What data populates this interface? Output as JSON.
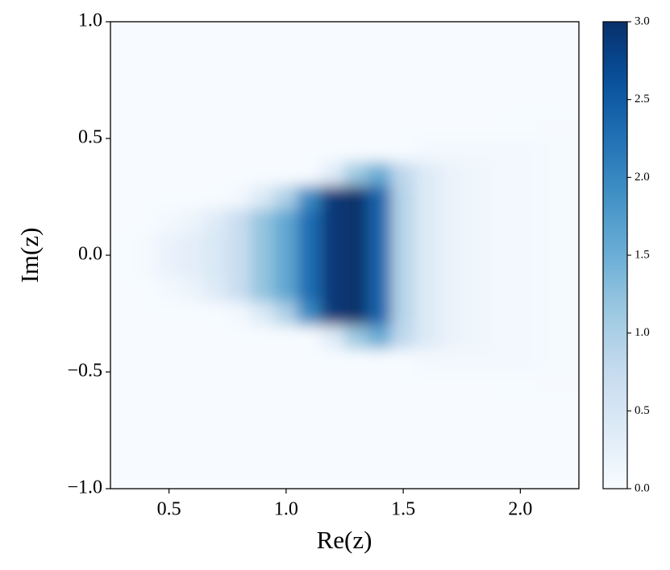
{
  "chart_data": {
    "type": "heatmap",
    "x_label": "Re(z)",
    "y_label": "Im(z)",
    "xlim": [
      0.25,
      2.25
    ],
    "ylim": [
      -1,
      1
    ],
    "xticks": [
      {
        "value": 0.5,
        "label": "0.5"
      },
      {
        "value": 1,
        "label": "1.0"
      },
      {
        "value": 1.5,
        "label": "1.5"
      },
      {
        "value": 2,
        "label": "2.0"
      }
    ],
    "yticks": [
      {
        "value": -1,
        "label": "−1.0"
      },
      {
        "value": -0.5,
        "label": "−0.5"
      },
      {
        "value": 0,
        "label": "0.0"
      },
      {
        "value": 0.5,
        "label": "0.5"
      },
      {
        "value": 1,
        "label": "1.0"
      }
    ],
    "colormap": "Blues",
    "clim": [
      0,
      3
    ],
    "cticks": [
      {
        "value": 0,
        "label": "0.0"
      },
      {
        "value": 0.5,
        "label": "0.5"
      },
      {
        "value": 1,
        "label": "1.0"
      },
      {
        "value": 1.5,
        "label": "1.5"
      },
      {
        "value": 2,
        "label": "2.0"
      },
      {
        "value": 2.5,
        "label": "2.5"
      },
      {
        "value": 3,
        "label": "3.0"
      }
    ],
    "z": [
      [
        0,
        0,
        0,
        0,
        0,
        0,
        0,
        0,
        0,
        0,
        0,
        0,
        0,
        0,
        0,
        0,
        0,
        0,
        0,
        0
      ],
      [
        0,
        0,
        0,
        0,
        0,
        0,
        0,
        0,
        0,
        0,
        0,
        0,
        0,
        0,
        0,
        0,
        0,
        0,
        0,
        0
      ],
      [
        0,
        0,
        0,
        0,
        0,
        0,
        0,
        0,
        0,
        0,
        0,
        0,
        0,
        0,
        0,
        0,
        0,
        0,
        0,
        0
      ],
      [
        0,
        0,
        0,
        0,
        0,
        0,
        0,
        0,
        0,
        0,
        0,
        0,
        0,
        0,
        0,
        0,
        0,
        0,
        0,
        0
      ],
      [
        0,
        0,
        0,
        0,
        0,
        0,
        0,
        0,
        0,
        0,
        0,
        0,
        0,
        0,
        0,
        0,
        0,
        0.01,
        0.02,
        0.02
      ],
      [
        0,
        0,
        0,
        0,
        0,
        0,
        0,
        0,
        0,
        0,
        0,
        0,
        0,
        0.06,
        0.08,
        0.08,
        0.08,
        0.06,
        0.04,
        0.03
      ],
      [
        0,
        0,
        0,
        0,
        0,
        0,
        0,
        0,
        0,
        0.35,
        1.14,
        1.54,
        0.81,
        0.4,
        0.2,
        0.12,
        0.08,
        0.06,
        0.04,
        0.03
      ],
      [
        0,
        0,
        0,
        0,
        0,
        0.06,
        0.41,
        0.96,
        1.98,
        2.9,
        3,
        2.4,
        0.9,
        0.4,
        0.2,
        0.12,
        0.08,
        0.06,
        0.04,
        0.03
      ],
      [
        0,
        0,
        0.06,
        0.17,
        0.37,
        0.7,
        1.2,
        1.6,
        2.3,
        2.9,
        3,
        2.4,
        0.9,
        0.4,
        0.2,
        0.12,
        0.08,
        0.06,
        0.04,
        0.03
      ],
      [
        0,
        0.05,
        0.2,
        0.3,
        0.45,
        0.7,
        1.2,
        1.6,
        2.3,
        2.9,
        3,
        2.4,
        0.9,
        0.4,
        0.2,
        0.12,
        0.08,
        0.06,
        0.04,
        0.03
      ],
      [
        0,
        0.05,
        0.2,
        0.3,
        0.45,
        0.7,
        1.2,
        1.6,
        2.3,
        2.9,
        3,
        2.4,
        0.9,
        0.4,
        0.2,
        0.12,
        0.08,
        0.06,
        0.04,
        0.03
      ],
      [
        0,
        0,
        0.06,
        0.17,
        0.37,
        0.7,
        1.2,
        1.6,
        2.3,
        2.9,
        3,
        2.4,
        0.9,
        0.4,
        0.2,
        0.12,
        0.08,
        0.06,
        0.04,
        0.03
      ],
      [
        0,
        0,
        0,
        0,
        0,
        0.06,
        0.41,
        0.96,
        1.98,
        2.9,
        3,
        2.4,
        0.9,
        0.4,
        0.2,
        0.12,
        0.08,
        0.06,
        0.04,
        0.03
      ],
      [
        0,
        0,
        0,
        0,
        0,
        0,
        0,
        0,
        0,
        0.35,
        1.14,
        1.54,
        0.81,
        0.4,
        0.2,
        0.12,
        0.08,
        0.06,
        0.04,
        0.03
      ],
      [
        0,
        0,
        0,
        0,
        0,
        0,
        0,
        0,
        0,
        0,
        0,
        0,
        0,
        0.06,
        0.08,
        0.08,
        0.08,
        0.06,
        0.04,
        0.03
      ],
      [
        0,
        0,
        0,
        0,
        0,
        0,
        0,
        0,
        0,
        0,
        0,
        0,
        0,
        0,
        0,
        0,
        0,
        0.01,
        0.02,
        0.02
      ],
      [
        0,
        0,
        0,
        0,
        0,
        0,
        0,
        0,
        0,
        0,
        0,
        0,
        0,
        0,
        0,
        0,
        0,
        0,
        0,
        0
      ],
      [
        0,
        0,
        0,
        0,
        0,
        0,
        0,
        0,
        0,
        0,
        0,
        0,
        0,
        0,
        0,
        0,
        0,
        0,
        0,
        0
      ],
      [
        0,
        0,
        0,
        0,
        0,
        0,
        0,
        0,
        0,
        0,
        0,
        0,
        0,
        0,
        0,
        0,
        0,
        0,
        0,
        0
      ],
      [
        0,
        0,
        0,
        0,
        0,
        0,
        0,
        0,
        0,
        0,
        0,
        0,
        0,
        0,
        0,
        0,
        0,
        0,
        0,
        0
      ]
    ]
  }
}
